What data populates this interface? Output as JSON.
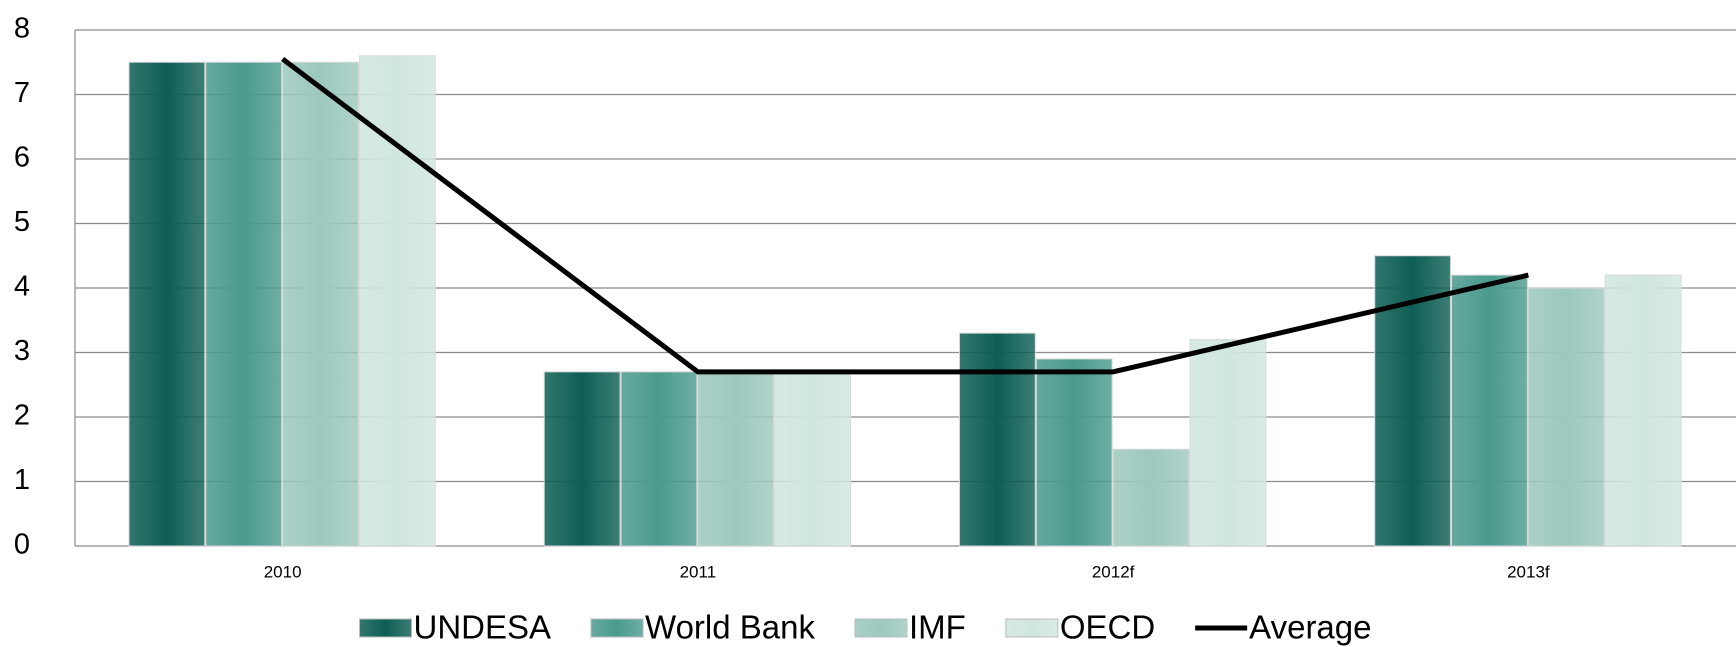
{
  "chart_data": {
    "type": "bar",
    "categories": [
      "2010",
      "2011",
      "2012f",
      "2013f"
    ],
    "series": [
      {
        "name": "UNDESA",
        "color": "#0d5e54",
        "values": [
          7.5,
          2.7,
          3.3,
          4.5
        ]
      },
      {
        "name": "World Bank",
        "color": "#4a9a8e",
        "values": [
          7.5,
          2.7,
          2.9,
          4.2
        ]
      },
      {
        "name": "IMF",
        "color": "#9cc8bd",
        "values": [
          7.5,
          2.7,
          1.5,
          4.0
        ]
      },
      {
        "name": "OECD",
        "color": "#cfe6df",
        "values": [
          7.6,
          2.7,
          3.2,
          4.2
        ]
      },
      {
        "name": "Average",
        "color": "#000000",
        "type": "line",
        "values": [
          7.55,
          2.7,
          2.7,
          4.2
        ]
      }
    ],
    "ylim": [
      0,
      8
    ],
    "yticks": [
      0,
      1,
      2,
      3,
      4,
      5,
      6,
      7,
      8
    ],
    "grid": true,
    "legend": "bottom"
  }
}
